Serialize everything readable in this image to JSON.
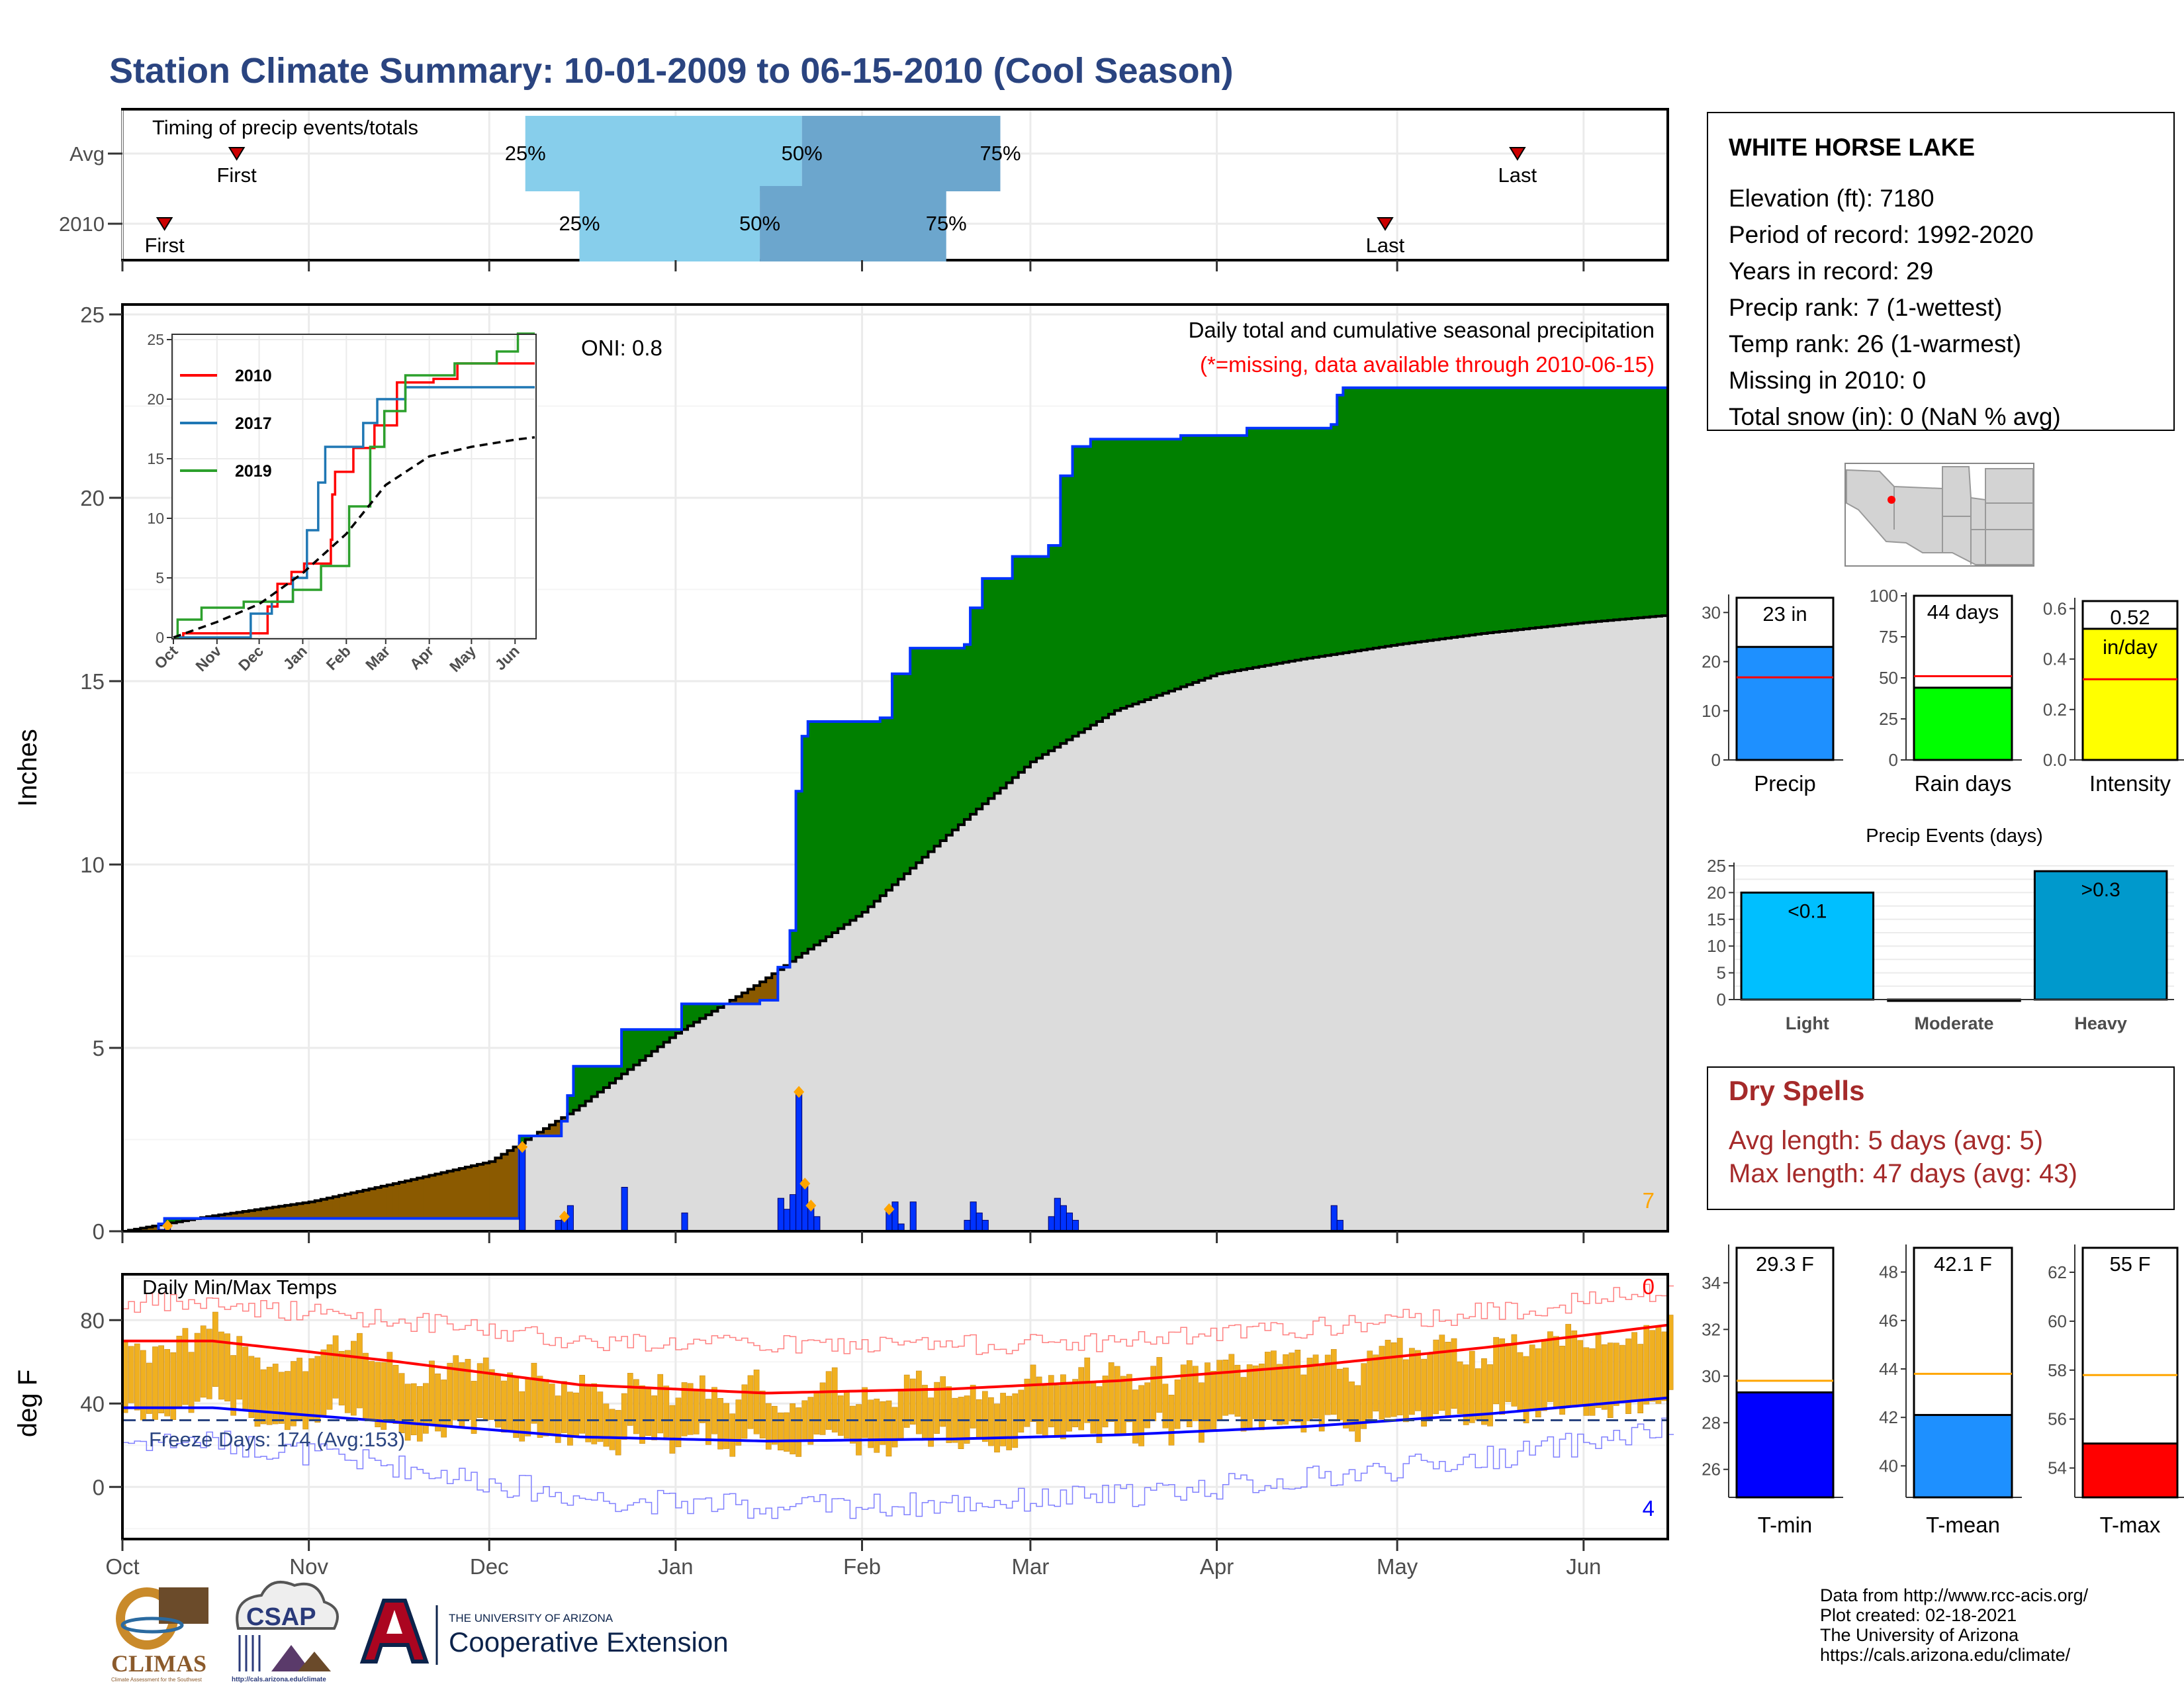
{
  "title": "Station Climate Summary: 10-01-2009 to 06-15-2010 (Cool Season)",
  "colors": {
    "title": "#2a4480",
    "ahead_fill": "#008000",
    "behind_fill": "#8b5a00",
    "normal_fill": "#dcdcdc",
    "daily_bar": "#0033ff",
    "quartile_light": "#87ceeb",
    "quartile_dark": "#6ca6cd",
    "dry_spells": "#a52a2a",
    "temp_bar": "#f0b020",
    "tmax_line": "#ff0000",
    "tmin_line": "#0000ff"
  },
  "timing": {
    "label": "Timing of precip events/totals",
    "rows": [
      {
        "name": "Avg",
        "first_label": "First",
        "last_label": "Last",
        "first_date": "2009-10-20",
        "last_date": "2010-05-21",
        "q25": "2009-12-07",
        "q50": "2010-01-22",
        "q75": "2010-02-24",
        "q25_label": "25%",
        "q50_label": "50%",
        "q75_label": "75%"
      },
      {
        "name": "2010",
        "first_label": "First",
        "last_label": "Last",
        "first_date": "2009-10-08",
        "last_date": "2010-04-29",
        "q25": "2009-12-16",
        "q50": "2010-01-15",
        "q75": "2010-02-15",
        "q25_label": "25%",
        "q50_label": "50%",
        "q75_label": "75%"
      }
    ]
  },
  "chart_data": [
    {
      "type": "area",
      "name": "precip_main",
      "title": "Daily total and cumulative seasonal precipitation",
      "subtitle": "(*=missing, data available through 2010-06-15)",
      "ylabel": "Inches",
      "oni_label": "ONI: 0.8",
      "missing_count": "7",
      "ylim": [
        0,
        25
      ],
      "y_ticks": [
        "0",
        "5",
        "10",
        "15",
        "20",
        "25"
      ],
      "x_ticks": [
        "Oct",
        "Nov",
        "Dec",
        "Jan",
        "Feb",
        "Mar",
        "Apr",
        "May",
        "Jun"
      ],
      "date_range": [
        "2009-10-01",
        "2010-06-15"
      ],
      "observed_cumulative": [
        [
          "2009-10-01",
          0.0
        ],
        [
          "2009-10-07",
          0.2
        ],
        [
          "2009-10-08",
          0.35
        ],
        [
          "2009-12-05",
          0.35
        ],
        [
          "2009-12-06",
          2.6
        ],
        [
          "2009-12-13",
          3.0
        ],
        [
          "2009-12-14",
          3.7
        ],
        [
          "2009-12-15",
          4.5
        ],
        [
          "2009-12-22",
          4.5
        ],
        [
          "2009-12-23",
          5.5
        ],
        [
          "2010-01-01",
          5.5
        ],
        [
          "2010-01-02",
          6.2
        ],
        [
          "2010-01-15",
          6.3
        ],
        [
          "2010-01-18",
          7.2
        ],
        [
          "2010-01-20",
          8.2
        ],
        [
          "2010-01-21",
          12.0
        ],
        [
          "2010-01-22",
          13.5
        ],
        [
          "2010-01-23",
          13.9
        ],
        [
          "2010-02-04",
          14.0
        ],
        [
          "2010-02-06",
          15.2
        ],
        [
          "2010-02-09",
          15.9
        ],
        [
          "2010-02-18",
          16.0
        ],
        [
          "2010-02-19",
          17.0
        ],
        [
          "2010-02-21",
          17.8
        ],
        [
          "2010-02-26",
          18.4
        ],
        [
          "2010-03-04",
          18.7
        ],
        [
          "2010-03-06",
          20.6
        ],
        [
          "2010-03-08",
          21.4
        ],
        [
          "2010-03-11",
          21.6
        ],
        [
          "2010-03-26",
          21.7
        ],
        [
          "2010-04-06",
          21.9
        ],
        [
          "2010-04-20",
          22.0
        ],
        [
          "2010-04-21",
          22.8
        ],
        [
          "2010-04-22",
          23.0
        ],
        [
          "2010-06-15",
          23.0
        ]
      ],
      "normal_cumulative": [
        [
          "2009-10-01",
          0.0
        ],
        [
          "2009-10-15",
          0.4
        ],
        [
          "2009-11-01",
          0.8
        ],
        [
          "2009-11-15",
          1.3
        ],
        [
          "2009-12-01",
          1.9
        ],
        [
          "2009-12-15",
          3.3
        ],
        [
          "2010-01-01",
          5.4
        ],
        [
          "2010-01-15",
          6.8
        ],
        [
          "2010-02-01",
          8.7
        ],
        [
          "2010-02-15",
          10.8
        ],
        [
          "2010-03-01",
          12.8
        ],
        [
          "2010-03-15",
          14.2
        ],
        [
          "2010-04-01",
          15.2
        ],
        [
          "2010-04-15",
          15.6
        ],
        [
          "2010-05-01",
          16.0
        ],
        [
          "2010-05-15",
          16.3
        ],
        [
          "2010-06-01",
          16.6
        ],
        [
          "2010-06-15",
          16.8
        ]
      ],
      "daily": [
        [
          "2009-10-07",
          0.05
        ],
        [
          "2009-10-08",
          0.15
        ],
        [
          "2009-12-06",
          2.3
        ],
        [
          "2009-12-12",
          0.3
        ],
        [
          "2009-12-13",
          0.4
        ],
        [
          "2009-12-14",
          0.7
        ],
        [
          "2009-12-23",
          1.2
        ],
        [
          "2010-01-02",
          0.5
        ],
        [
          "2010-01-18",
          0.9
        ],
        [
          "2010-01-19",
          0.6
        ],
        [
          "2010-01-20",
          1.0
        ],
        [
          "2010-01-21",
          3.8
        ],
        [
          "2010-01-22",
          1.3
        ],
        [
          "2010-01-23",
          0.7
        ],
        [
          "2010-01-24",
          0.4
        ],
        [
          "2010-02-05",
          0.6
        ],
        [
          "2010-02-06",
          0.8
        ],
        [
          "2010-02-07",
          0.2
        ],
        [
          "2010-02-09",
          0.8
        ],
        [
          "2010-02-18",
          0.3
        ],
        [
          "2010-02-19",
          0.8
        ],
        [
          "2010-02-20",
          0.5
        ],
        [
          "2010-02-21",
          0.3
        ],
        [
          "2010-03-04",
          0.4
        ],
        [
          "2010-03-05",
          0.9
        ],
        [
          "2010-03-06",
          0.7
        ],
        [
          "2010-03-07",
          0.5
        ],
        [
          "2010-03-08",
          0.3
        ],
        [
          "2010-04-20",
          0.7
        ],
        [
          "2010-04-21",
          0.3
        ]
      ],
      "snow_markers": [
        "2009-10-08",
        "2009-12-06",
        "2009-12-13",
        "2010-01-21",
        "2010-01-22",
        "2010-01-23",
        "2010-02-05"
      ]
    },
    {
      "type": "line",
      "name": "inset_cumulative",
      "x_ticks": [
        "Oct",
        "Nov",
        "Dec",
        "Jan",
        "Feb",
        "Mar",
        "Apr",
        "May",
        "Jun"
      ],
      "y_ticks": [
        "0",
        "5",
        "10",
        "15",
        "20",
        "25"
      ],
      "ylim": [
        0,
        25
      ],
      "series": [
        {
          "name": "2010",
          "color": "#ff0000",
          "points": [
            [
              0,
              0
            ],
            [
              7,
              0.35
            ],
            [
              66,
              0.35
            ],
            [
              67,
              2.6
            ],
            [
              74,
              4.5
            ],
            [
              84,
              5.5
            ],
            [
              93,
              6.2
            ],
            [
              112,
              8.2
            ],
            [
              113,
              12.0
            ],
            [
              115,
              13.9
            ],
            [
              128,
              15.9
            ],
            [
              143,
              17.8
            ],
            [
              159,
              21.4
            ],
            [
              185,
              21.7
            ],
            [
              202,
              23.0
            ],
            [
              257,
              23.0
            ]
          ]
        },
        {
          "name": "2017",
          "color": "#1f77b4",
          "points": [
            [
              0,
              0
            ],
            [
              30,
              0
            ],
            [
              55,
              2
            ],
            [
              70,
              3
            ],
            [
              85,
              5
            ],
            [
              95,
              9
            ],
            [
              103,
              13
            ],
            [
              108,
              16
            ],
            [
              125,
              16
            ],
            [
              135,
              18
            ],
            [
              145,
              20
            ],
            [
              165,
              21
            ],
            [
              200,
              21
            ],
            [
              257,
              21
            ]
          ]
        },
        {
          "name": "2019",
          "color": "#2ca02c",
          "points": [
            [
              0,
              0
            ],
            [
              3,
              1.5
            ],
            [
              20,
              2.5
            ],
            [
              50,
              3
            ],
            [
              85,
              4
            ],
            [
              105,
              6
            ],
            [
              125,
              11
            ],
            [
              140,
              16
            ],
            [
              150,
              19
            ],
            [
              165,
              22
            ],
            [
              200,
              23
            ],
            [
              230,
              24
            ],
            [
              245,
              25.5
            ],
            [
              257,
              25.8
            ]
          ]
        },
        {
          "name": "",
          "color": "#000000",
          "dashed": true,
          "points": [
            [
              0,
              0
            ],
            [
              31,
              1.3
            ],
            [
              61,
              2.8
            ],
            [
              92,
              5.4
            ],
            [
              123,
              8.7
            ],
            [
              151,
              12.8
            ],
            [
              182,
              15.2
            ],
            [
              212,
              16.0
            ],
            [
              243,
              16.6
            ],
            [
              257,
              16.8
            ]
          ]
        }
      ]
    },
    {
      "type": "bar",
      "name": "daily_temps",
      "label": "Daily Min/Max Temps",
      "ylabel": "deg F",
      "freeze_label": "Freeze Days: 174 (Avg:153)",
      "max_missing": "0",
      "min_missing": "4",
      "ylim": [
        -25,
        102
      ],
      "y_ticks": [
        "0",
        "40",
        "80"
      ],
      "freezing_line": 32,
      "x_ticks": [
        "Oct",
        "Nov",
        "Dec",
        "Jan",
        "Feb",
        "Mar",
        "Apr",
        "May",
        "Jun"
      ],
      "avg_tmax_monthly": [
        70,
        60,
        49,
        45,
        47,
        51,
        58,
        67,
        78
      ],
      "avg_tmin_monthly": [
        38,
        31,
        24,
        22,
        23,
        25,
        29,
        35,
        43
      ],
      "record_max_monthly": [
        88,
        80,
        70,
        68,
        68,
        70,
        76,
        84,
        94
      ],
      "record_min_monthly": [
        22,
        10,
        -5,
        -10,
        -8,
        -4,
        4,
        14,
        28
      ]
    },
    {
      "type": "bar",
      "name": "precip_total",
      "categories": [
        "Precip"
      ],
      "values": [
        23
      ],
      "value_label": "23 in",
      "avg": 16.8,
      "ylim": [
        0,
        33
      ],
      "y_ticks": [
        "0",
        "10",
        "20",
        "30"
      ],
      "color": "#1e90ff"
    },
    {
      "type": "bar",
      "name": "rain_days",
      "categories": [
        "Rain days"
      ],
      "values": [
        44
      ],
      "value_label": "44 days",
      "avg": 51,
      "ylim": [
        0,
        100
      ],
      "y_ticks": [
        "0",
        "25",
        "50",
        "75",
        "100"
      ],
      "color": "#00ff00"
    },
    {
      "type": "bar",
      "name": "intensity",
      "categories": [
        "Intensity"
      ],
      "values": [
        0.52
      ],
      "value_label": "0.52",
      "value_unit": "in/day",
      "avg": 0.32,
      "ylim": [
        0,
        0.63
      ],
      "y_ticks": [
        "0.0",
        "0.2",
        "0.4",
        "0.6"
      ],
      "color": "#ffff00"
    },
    {
      "type": "bar",
      "name": "precip_events",
      "title": "Precip Events (days)",
      "categories": [
        "Light",
        "Moderate",
        "Heavy"
      ],
      "values": [
        20,
        0,
        24
      ],
      "value_labels": [
        "<0.1",
        "",
        ">0.3"
      ],
      "ylim": [
        0,
        25
      ],
      "y_ticks": [
        "0",
        "5",
        "10",
        "15",
        "20",
        "25"
      ],
      "colors": [
        "#00bfff",
        "#1e90ff",
        "#0099cc"
      ]
    },
    {
      "type": "bar",
      "name": "tmin_avg",
      "categories": [
        "T-min"
      ],
      "values": [
        29.3
      ],
      "value_label": "29.3 F",
      "avg": 29.8,
      "ylim": [
        24.8,
        35.5
      ],
      "y_ticks": [
        "26",
        "28",
        "30",
        "32",
        "34"
      ],
      "color": "#0000ff"
    },
    {
      "type": "bar",
      "name": "tmean_avg",
      "categories": [
        "T-mean"
      ],
      "values": [
        42.1
      ],
      "value_label": "42.1 F",
      "avg": 43.8,
      "ylim": [
        38.7,
        49
      ],
      "y_ticks": [
        "40",
        "42",
        "44",
        "46",
        "48"
      ],
      "color": "#1e90ff"
    },
    {
      "type": "bar",
      "name": "tmax_avg",
      "categories": [
        "T-max"
      ],
      "values": [
        55
      ],
      "value_label": "55 F",
      "avg": 57.8,
      "ylim": [
        52.8,
        63
      ],
      "y_ticks": [
        "54",
        "56",
        "58",
        "60",
        "62"
      ],
      "color": "#ff0000"
    }
  ],
  "station": {
    "name": "WHITE HORSE LAKE",
    "lines": [
      "Elevation (ft): 7180",
      "Period of record: 1992-2020",
      "Years in record: 29",
      "Precip rank: 7 (1-wettest)",
      "Temp rank: 26 (1-warmest)",
      "Missing in 2010: 0",
      "Total snow (in): 0 (NaN % avg)"
    ]
  },
  "dry_spells": {
    "title": "Dry Spells",
    "avg_line": "Avg length: 5 days (avg: 5)",
    "max_line": "Max length: 47 days (avg: 43)"
  },
  "credits": [
    "Data from http://www.rcc-acis.org/",
    "Plot created: 02-18-2021",
    "The University of Arizona",
    "https://cals.arizona.edu/climate/"
  ],
  "logos": {
    "climas": "CLIMAS",
    "climas_sub": "Climate Assessment for the Southwest",
    "csap": "CSAP",
    "csap_url": "http://cals.arizona.edu/climate",
    "ua_small": "THE UNIVERSITY OF ARIZONA",
    "ua_big": "Cooperative Extension"
  }
}
